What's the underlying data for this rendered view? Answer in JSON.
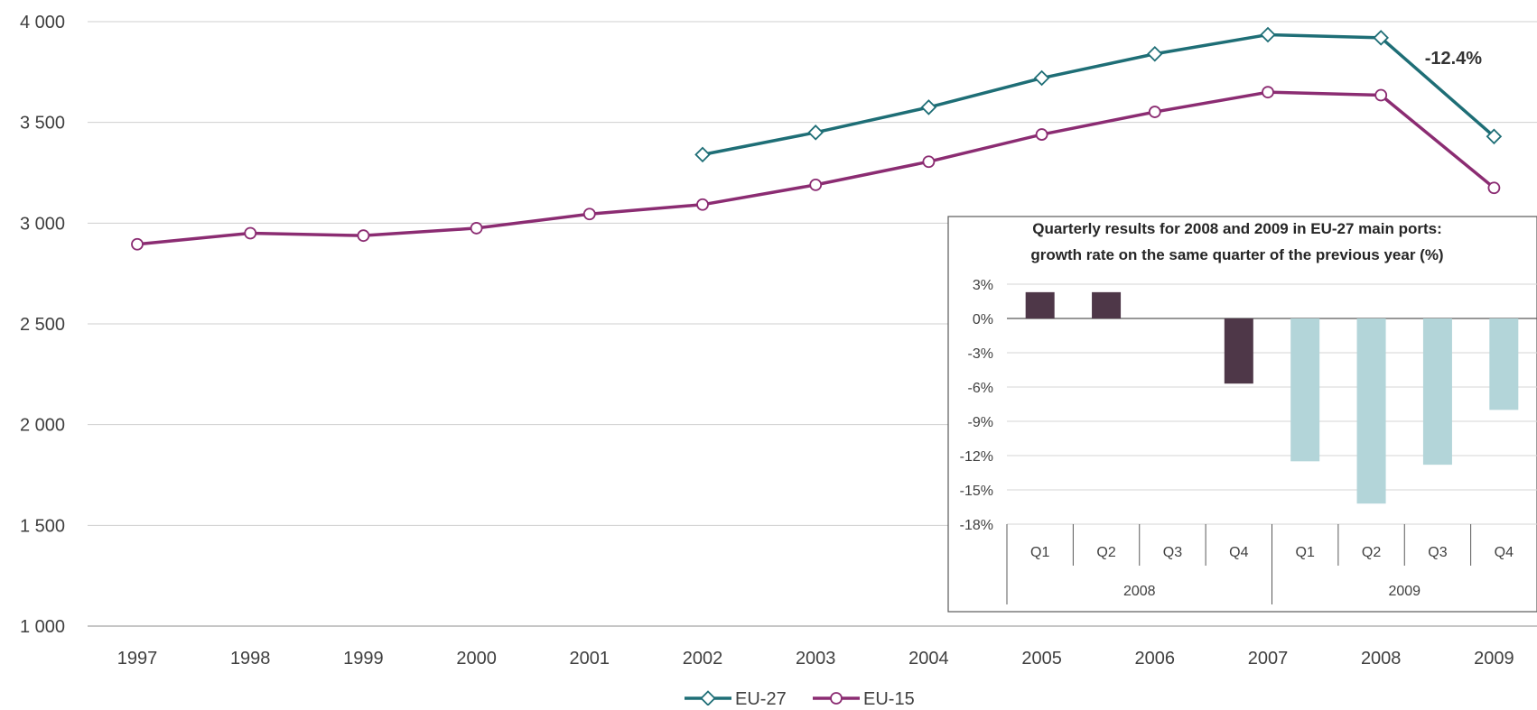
{
  "chart_data": [
    {
      "type": "line",
      "title": "",
      "xlabel": "",
      "ylabel": "",
      "x": [
        "1997",
        "1998",
        "1999",
        "2000",
        "2001",
        "2002",
        "2003",
        "2004",
        "2005",
        "2006",
        "2007",
        "2008",
        "2009"
      ],
      "y_ticks": [
        "1 000",
        "1 500",
        "2 000",
        "2 500",
        "3 000",
        "3 500",
        "4 000"
      ],
      "ylim": [
        1000,
        4000
      ],
      "grid": "horizontal",
      "legend_position": "bottom",
      "series": [
        {
          "name": "EU-27",
          "color": "#1e6e76",
          "marker": "diamond",
          "values": [
            null,
            null,
            null,
            null,
            null,
            3340,
            3450,
            3575,
            3720,
            3840,
            3935,
            3920,
            3430
          ]
        },
        {
          "name": "EU-15",
          "color": "#8b2c72",
          "marker": "circle",
          "values": [
            2895,
            2950,
            2938,
            2975,
            3045,
            3092,
            3190,
            3305,
            3440,
            3552,
            3650,
            3635,
            3175
          ]
        }
      ],
      "annotations": [
        {
          "text": "-12.4%",
          "x": "2009",
          "y": 3820
        }
      ]
    },
    {
      "type": "bar",
      "title": "Quarterly results for 2008 and 2009 in EU-27 main ports: growth  rate on the same quarter of the previous year (%)",
      "title_lines": [
        "Quarterly results for 2008 and 2009 in EU-27 main ports:",
        "growth  rate on the same quarter of the previous year (%)"
      ],
      "categories": [
        "Q1",
        "Q2",
        "Q3",
        "Q4",
        "Q1",
        "Q2",
        "Q3",
        "Q4"
      ],
      "groups": [
        {
          "label": "2008",
          "count": 4,
          "color": "#4e3748"
        },
        {
          "label": "2009",
          "count": 4,
          "color": "#b3d5d9"
        }
      ],
      "values": [
        2.3,
        2.3,
        0,
        -5.7,
        -12.5,
        -16.2,
        -12.8,
        -8.0
      ],
      "y_ticks": [
        "3%",
        "0%",
        "-3%",
        "-6%",
        "-9%",
        "-12%",
        "-15%",
        "-18%"
      ],
      "ylim": [
        -18,
        3
      ],
      "grid": "horizontal"
    }
  ]
}
